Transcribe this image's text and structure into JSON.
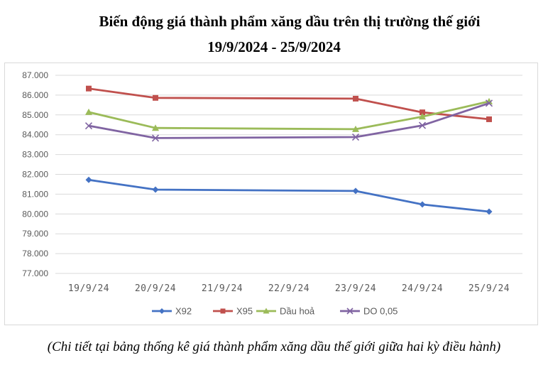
{
  "title_line1": "Biến động giá thành phẩm xăng dầu trên thị trường thế giới",
  "title_line2": "19/9/2024 - 25/9/2024",
  "caption": "(Chi tiết tại bảng thống kê giá thành phẩm xăng dầu thế giới giữa hai kỳ điều hành)",
  "colors": {
    "X92": "#4472c4",
    "X95": "#c0504d",
    "Dau hoa": "#9bbb59",
    "DO": "#8064a2",
    "grid": "#d9d9d9",
    "axis_text": "#595959"
  },
  "chart_data": {
    "type": "line",
    "title": "Biến động giá thành phẩm xăng dầu trên thị trường thế giới",
    "subtitle": "19/9/2024 - 25/9/2024",
    "xlabel": "",
    "ylabel": "",
    "categories": [
      "19/9/24",
      "20/9/24",
      "21/9/24",
      "22/9/24",
      "23/9/24",
      "24/9/24",
      "25/9/24"
    ],
    "yticks": [
      "77.000",
      "78.000",
      "79.000",
      "80.000",
      "81.000",
      "82.000",
      "83.000",
      "84.000",
      "85.000",
      "86.000",
      "87.000"
    ],
    "ylim": [
      77000,
      87000
    ],
    "grid": true,
    "legend_position": "bottom",
    "series": [
      {
        "name": "X92",
        "color": "#4472c4",
        "marker": "diamond",
        "values": [
          81720,
          81230,
          null,
          null,
          81160,
          80480,
          80120
        ]
      },
      {
        "name": "X95",
        "color": "#c0504d",
        "marker": "square",
        "values": [
          86330,
          85860,
          null,
          null,
          85820,
          85130,
          84780
        ]
      },
      {
        "name": "Dầu hoả",
        "color": "#9bbb59",
        "marker": "triangle",
        "values": [
          85140,
          84340,
          null,
          null,
          84280,
          84910,
          85680
        ]
      },
      {
        "name": "DO 0,05",
        "color": "#8064a2",
        "marker": "x",
        "values": [
          84450,
          83830,
          null,
          null,
          83880,
          84470,
          85590
        ]
      }
    ]
  }
}
